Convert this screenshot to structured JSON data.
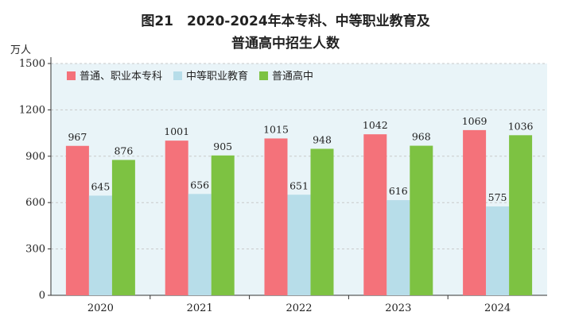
{
  "title_line1": "图21　2020-2024年本专科、中等职业教育及",
  "title_line2": "普通高中招生人数",
  "chart_data": {
    "type": "bar",
    "ylabel": "万人",
    "ylim": [
      0,
      1500
    ],
    "yticks": [
      0,
      300,
      600,
      900,
      1200,
      1500
    ],
    "categories": [
      "2020",
      "2021",
      "2022",
      "2023",
      "2024"
    ],
    "series": [
      {
        "name": "普通、职业本专科",
        "color": "#f4727a",
        "values": [
          967,
          1001,
          1015,
          1042,
          1069
        ]
      },
      {
        "name": "中等职业教育",
        "color": "#b7dde9",
        "values": [
          645,
          656,
          651,
          616,
          575
        ]
      },
      {
        "name": "普通高中",
        "color": "#7dc242",
        "values": [
          876,
          905,
          948,
          968,
          1036
        ]
      }
    ],
    "legend_position": "top-left",
    "background": "#e9f4f8"
  }
}
